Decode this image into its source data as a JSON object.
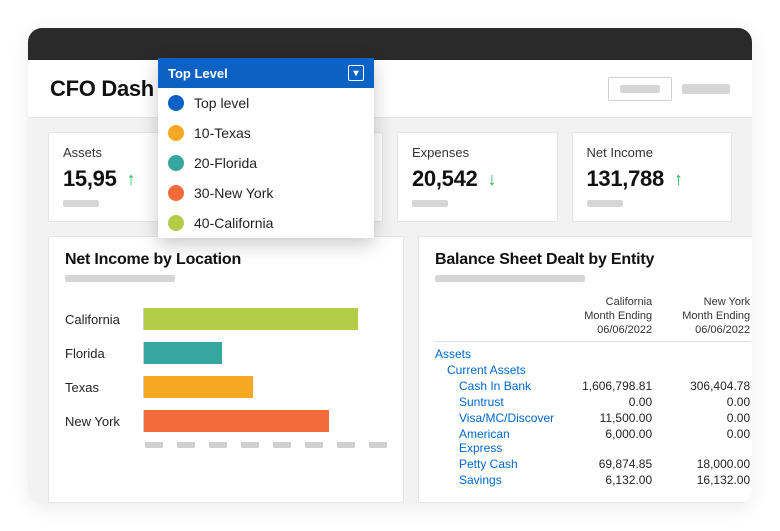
{
  "page_title": "CFO Dash",
  "colors": {
    "brand_blue": "#0b62c4",
    "up_green": "#1db954",
    "link_blue": "#0066cc",
    "window_bg": "#f2f2f2",
    "titlebar": "#2a2a2a"
  },
  "dropdown": {
    "selected": "Top Level",
    "options": [
      {
        "label": "Top level",
        "swatch": "#0b62c4"
      },
      {
        "label": "10-Texas",
        "swatch": "#f7a823"
      },
      {
        "label": "20-Florida",
        "swatch": "#35a7a0"
      },
      {
        "label": "30-New York",
        "swatch": "#f26b3a"
      },
      {
        "label": "40-California",
        "swatch": "#b3cd4a"
      }
    ]
  },
  "kpis": [
    {
      "label": "Assets",
      "value": "15,95",
      "dir": "up"
    },
    {
      "label": "",
      "value": "",
      "dir": "up"
    },
    {
      "label": "Expenses",
      "value": "20,542",
      "dir": "down"
    },
    {
      "label": "Net Income",
      "value": "131,788",
      "dir": "up"
    }
  ],
  "net_income_chart": {
    "title": "Net Income by Location",
    "type": "bar-horizontal",
    "xlim": [
      0,
      100
    ],
    "bars": [
      {
        "label": "California",
        "value": 88,
        "color": "#b3cd4a"
      },
      {
        "label": "Florida",
        "value": 32,
        "color": "#35a7a0"
      },
      {
        "label": "Texas",
        "value": 45,
        "color": "#f7a823"
      },
      {
        "label": "New York",
        "value": 76,
        "color": "#f26b3a"
      }
    ],
    "tick_count": 8
  },
  "balance_sheet": {
    "title": "Balance Sheet Dealt by Entity",
    "columns": [
      {
        "region": "California",
        "sub1": "Month Ending",
        "sub2": "06/06/2022"
      },
      {
        "region": "New York",
        "sub1": "Month Ending",
        "sub2": "06/06/2022"
      }
    ],
    "rows": [
      {
        "level": 0,
        "name": "Assets",
        "v1": "",
        "v2": ""
      },
      {
        "level": 1,
        "name": "Current Assets",
        "v1": "",
        "v2": ""
      },
      {
        "level": 2,
        "name": "Cash In Bank",
        "v1": "1,606,798.81",
        "v2": "306,404.78"
      },
      {
        "level": 2,
        "name": "Suntrust",
        "v1": "0.00",
        "v2": "0.00"
      },
      {
        "level": 2,
        "name": "Visa/MC/Discover",
        "v1": "11,500.00",
        "v2": "0.00"
      },
      {
        "level": 2,
        "name": "American Express",
        "v1": "6,000.00",
        "v2": "0.00"
      },
      {
        "level": 2,
        "name": "Petty Cash",
        "v1": "69,874.85",
        "v2": "18,000.00"
      },
      {
        "level": 2,
        "name": "Savings",
        "v1": "6,132.00",
        "v2": "16,132.00"
      }
    ]
  }
}
